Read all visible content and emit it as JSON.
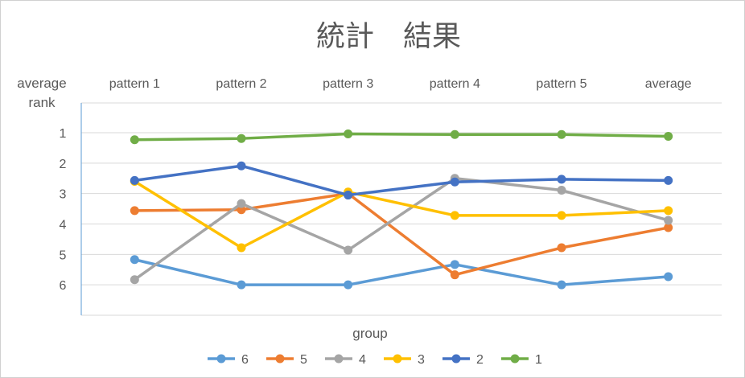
{
  "chart_data": {
    "type": "line",
    "title": "統計　結果",
    "xlabel": "group",
    "ylabel": [
      "average",
      "rank"
    ],
    "categories": [
      "pattern 1",
      "pattern 2",
      "pattern 3",
      "pattern 4",
      "pattern 5",
      "average"
    ],
    "x_axis_position": "top",
    "y_axis_reversed": true,
    "ylim": [
      1,
      7
    ],
    "y_ticks": [
      "1",
      "2",
      "3",
      "4",
      "5",
      "6"
    ],
    "grid": true,
    "legend_position": "bottom",
    "series": [
      {
        "name": "6",
        "color": "#5b9bd5",
        "values": [
          5.17,
          6.0,
          6.0,
          5.33,
          6.0,
          5.73
        ]
      },
      {
        "name": "5",
        "color": "#ed7d31",
        "values": [
          3.56,
          3.53,
          3.0,
          5.67,
          4.78,
          4.12
        ]
      },
      {
        "name": "4",
        "color": "#a5a5a5",
        "values": [
          5.83,
          3.33,
          4.86,
          2.5,
          2.89,
          3.88
        ]
      },
      {
        "name": "3",
        "color": "#ffc000",
        "values": [
          2.6,
          4.78,
          2.95,
          3.72,
          3.72,
          3.56
        ]
      },
      {
        "name": "2",
        "color": "#4472c4",
        "values": [
          2.57,
          2.09,
          3.05,
          2.62,
          2.53,
          2.57
        ]
      },
      {
        "name": "1",
        "color": "#70ad47",
        "values": [
          1.23,
          1.19,
          1.04,
          1.06,
          1.06,
          1.12
        ]
      }
    ]
  }
}
